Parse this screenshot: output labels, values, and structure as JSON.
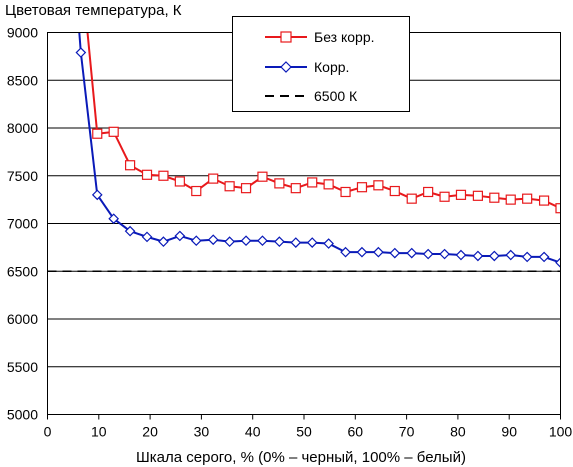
{
  "chart_data": {
    "type": "line",
    "title": "",
    "ylabel": "Цветовая температура, К",
    "xlabel": "Шкала серого, % (0% – черный, 100% – белый)",
    "xlim": [
      0,
      100
    ],
    "ylim": [
      5000,
      9000
    ],
    "x_ticks": [
      0,
      10,
      20,
      30,
      40,
      50,
      60,
      70,
      80,
      90,
      100
    ],
    "y_ticks": [
      5000,
      5500,
      6000,
      6500,
      7000,
      7500,
      8000,
      8500,
      9000
    ],
    "x_tick_labels": [
      "0",
      "10",
      "20",
      "30",
      "40",
      "50",
      "60",
      "70",
      "80",
      "90",
      "100"
    ],
    "y_tick_labels": [
      "5000",
      "5500",
      "6000",
      "6500",
      "7000",
      "7500",
      "8000",
      "8500",
      "9000"
    ],
    "grid": "horizontal",
    "legend_position": "top-right",
    "series": [
      {
        "name": "Без корр.",
        "color": "#e8191c",
        "marker": "square",
        "x": [
          7.8,
          9.7,
          12.9,
          16.1,
          19.4,
          22.6,
          25.8,
          29.0,
          32.3,
          35.5,
          38.7,
          41.9,
          45.2,
          48.4,
          51.6,
          54.8,
          58.1,
          61.3,
          64.5,
          67.7,
          71.0,
          74.2,
          77.4,
          80.6,
          83.9,
          87.1,
          90.3,
          93.5,
          96.8,
          100
        ],
        "y": [
          9000,
          7940,
          7960,
          7610,
          7510,
          7500,
          7440,
          7340,
          7470,
          7390,
          7370,
          7490,
          7420,
          7370,
          7430,
          7410,
          7330,
          7380,
          7400,
          7340,
          7260,
          7330,
          7280,
          7300,
          7290,
          7270,
          7250,
          7260,
          7240,
          7160
        ]
      },
      {
        "name": "Корр.",
        "color": "#0a1ab8",
        "marker": "diamond",
        "x": [
          6.2,
          6.5,
          9.7,
          12.9,
          16.1,
          19.4,
          22.6,
          25.8,
          29.0,
          32.3,
          35.5,
          38.7,
          41.9,
          45.2,
          48.4,
          51.6,
          54.8,
          58.1,
          61.3,
          64.5,
          67.7,
          71.0,
          74.2,
          77.4,
          80.6,
          83.9,
          87.1,
          90.3,
          93.5,
          96.8,
          100
        ],
        "y": [
          9000,
          8790,
          7300,
          7050,
          6920,
          6860,
          6810,
          6870,
          6820,
          6830,
          6810,
          6820,
          6820,
          6810,
          6800,
          6800,
          6790,
          6700,
          6700,
          6700,
          6690,
          6690,
          6680,
          6680,
          6670,
          6660,
          6660,
          6670,
          6650,
          6650,
          6590
        ]
      },
      {
        "name": "6500 К",
        "color": "#000000",
        "style": "dashed",
        "x": [
          0,
          100
        ],
        "y": [
          6500,
          6500
        ]
      }
    ]
  }
}
